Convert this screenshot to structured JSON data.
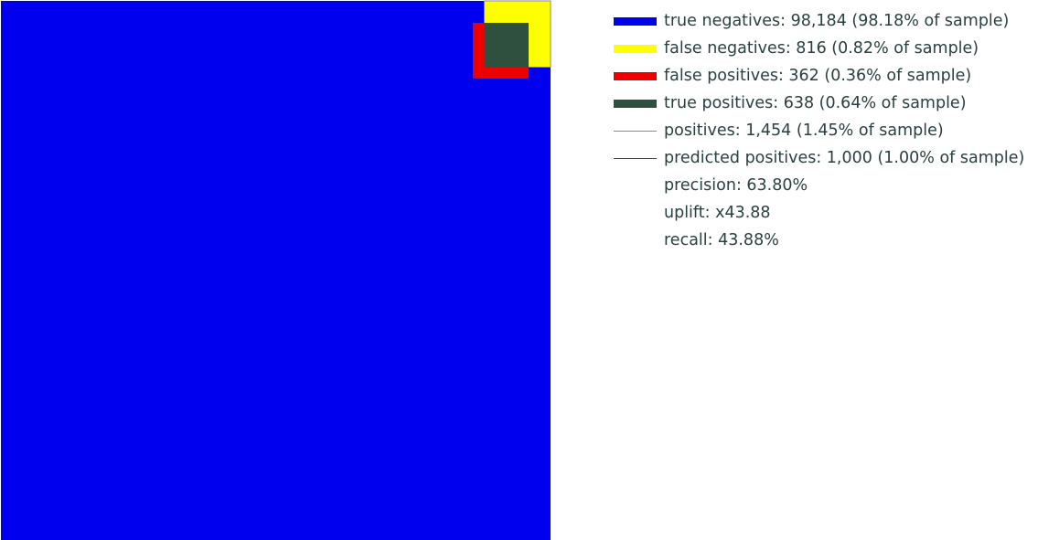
{
  "colors": {
    "true_negatives": "#0000ee",
    "false_negatives": "#ffff00",
    "false_positives": "#ee0000",
    "true_positives": "#2f4f3f",
    "positives_line": "#8a8a96",
    "predicted_positives_line": "#2f4f3f",
    "label_text": "#2a3f3f"
  },
  "chart_data": {
    "type": "area",
    "description_kind": "nested confusion-matrix squares (area proportional to count)",
    "sample_total": 100000,
    "regions": [
      {
        "key": "true_negatives",
        "count": 98184,
        "percent_of_sample": 98.18,
        "color": "#0000ee"
      },
      {
        "key": "false_negatives",
        "count": 816,
        "percent_of_sample": 0.82,
        "color": "#ffff00"
      },
      {
        "key": "false_positives",
        "count": 362,
        "percent_of_sample": 0.36,
        "color": "#ee0000"
      },
      {
        "key": "true_positives",
        "count": 638,
        "percent_of_sample": 0.64,
        "color": "#2f4f3f"
      }
    ],
    "positives": {
      "count": 1454,
      "percent_of_sample": 1.45
    },
    "predicted_positives": {
      "count": 1000,
      "percent_of_sample": 1.0
    },
    "metrics": {
      "precision": 63.8,
      "uplift": 43.88,
      "recall": 43.88
    }
  },
  "legend": [
    {
      "kind": "bar",
      "color": "#0000ee",
      "label": "true negatives: 98,184 (98.18% of sample)"
    },
    {
      "kind": "bar",
      "color": "#ffff00",
      "label": "false negatives: 816 (0.82% of sample)"
    },
    {
      "kind": "bar",
      "color": "#ee0000",
      "label": "false positives: 362 (0.36% of sample)"
    },
    {
      "kind": "bar",
      "color": "#2f4f3f",
      "label": "true positives: 638 (0.64% of sample)"
    },
    {
      "kind": "line",
      "color": "#8a8a96",
      "label": "positives: 1,454 (1.45% of sample)"
    },
    {
      "kind": "line",
      "color": "#2f4f3f",
      "label": "predicted positives: 1,000 (1.00% of sample)"
    },
    {
      "kind": "none",
      "color": "",
      "label": "precision: 63.80%"
    },
    {
      "kind": "none",
      "color": "",
      "label": "uplift: x43.88"
    },
    {
      "kind": "none",
      "color": "",
      "label": "recall: 43.88%"
    }
  ]
}
